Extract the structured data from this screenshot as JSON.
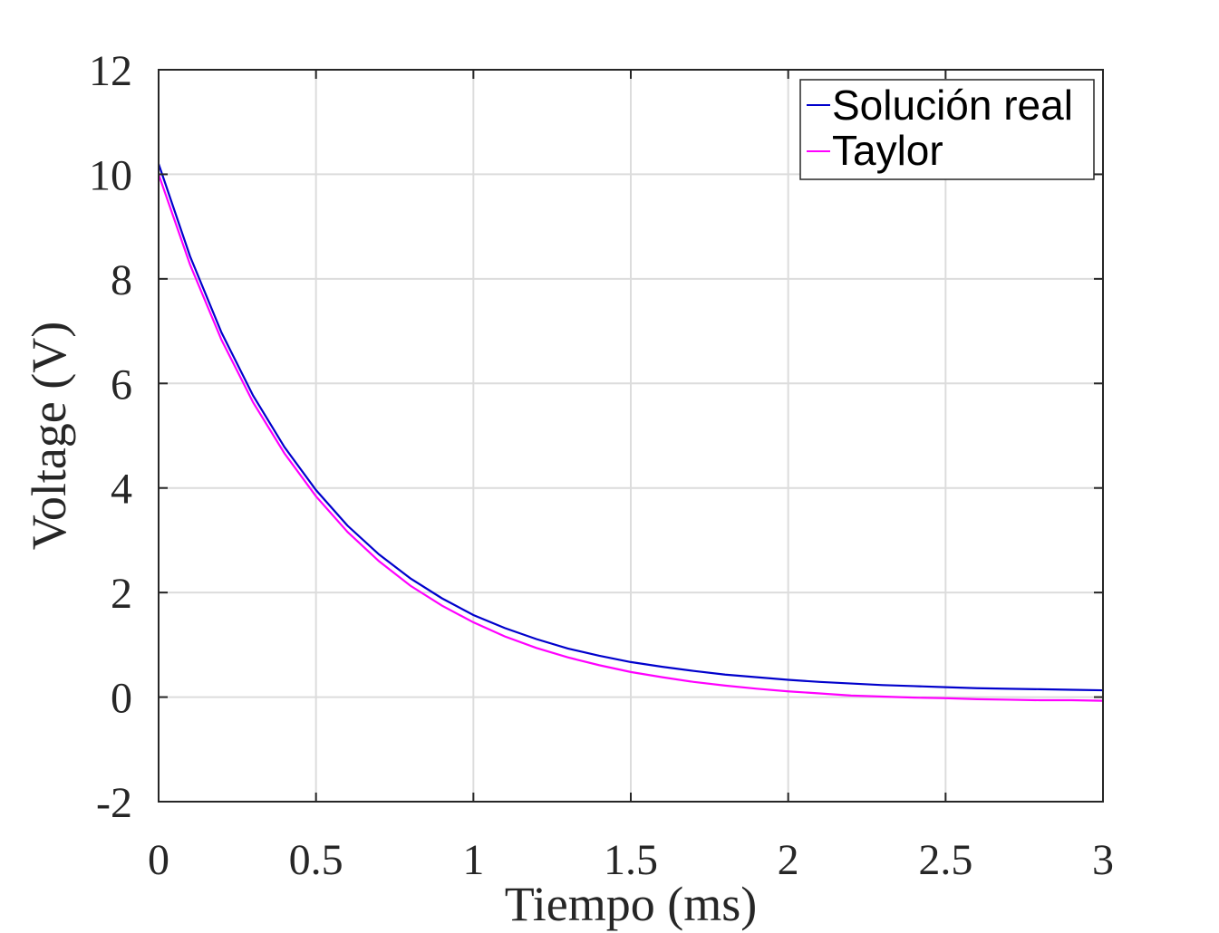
{
  "chart_data": {
    "type": "line",
    "xlabel": "Tiempo (ms)",
    "ylabel": "Voltage (V)",
    "xlim": [
      0,
      3
    ],
    "ylim": [
      -2,
      12
    ],
    "xticks": [
      0,
      0.5,
      1,
      1.5,
      2,
      2.5,
      3
    ],
    "xtick_labels": [
      "0",
      "0.5",
      "1",
      "1.5",
      "2",
      "2.5",
      "3"
    ],
    "yticks": [
      -2,
      0,
      2,
      4,
      6,
      8,
      10,
      12
    ],
    "ytick_labels": [
      "-2",
      "0",
      "2",
      "4",
      "6",
      "8",
      "10",
      "12"
    ],
    "grid": true,
    "legend_position": "top-right",
    "series": [
      {
        "name": "Solución real",
        "color": "#0000cc",
        "x": [
          0,
          0.1,
          0.2,
          0.3,
          0.4,
          0.5,
          0.6,
          0.7,
          0.8,
          0.9,
          1.0,
          1.1,
          1.2,
          1.3,
          1.4,
          1.5,
          1.6,
          1.7,
          1.8,
          1.9,
          2.0,
          2.1,
          2.2,
          2.3,
          2.4,
          2.5,
          2.6,
          2.7,
          2.8,
          2.9,
          3.0
        ],
        "y": [
          10.2,
          8.43,
          6.97,
          5.77,
          4.78,
          3.96,
          3.28,
          2.73,
          2.27,
          1.89,
          1.57,
          1.32,
          1.11,
          0.93,
          0.79,
          0.67,
          0.58,
          0.5,
          0.43,
          0.38,
          0.33,
          0.29,
          0.26,
          0.23,
          0.21,
          0.19,
          0.17,
          0.16,
          0.15,
          0.14,
          0.13
        ]
      },
      {
        "name": "Taylor",
        "color": "#ff00ff",
        "x": [
          0,
          0.1,
          0.2,
          0.3,
          0.4,
          0.5,
          0.6,
          0.7,
          0.8,
          0.9,
          1.0,
          1.1,
          1.2,
          1.3,
          1.4,
          1.5,
          1.6,
          1.7,
          1.8,
          1.9,
          2.0,
          2.1,
          2.2,
          2.3,
          2.4,
          2.5,
          2.6,
          2.7,
          2.8,
          2.9,
          3.0
        ],
        "y": [
          10.0,
          8.27,
          6.83,
          5.64,
          4.66,
          3.84,
          3.16,
          2.6,
          2.13,
          1.75,
          1.43,
          1.16,
          0.94,
          0.76,
          0.61,
          0.48,
          0.38,
          0.29,
          0.22,
          0.16,
          0.11,
          0.07,
          0.03,
          0.01,
          -0.01,
          -0.02,
          -0.04,
          -0.05,
          -0.06,
          -0.06,
          -0.07
        ]
      }
    ]
  }
}
